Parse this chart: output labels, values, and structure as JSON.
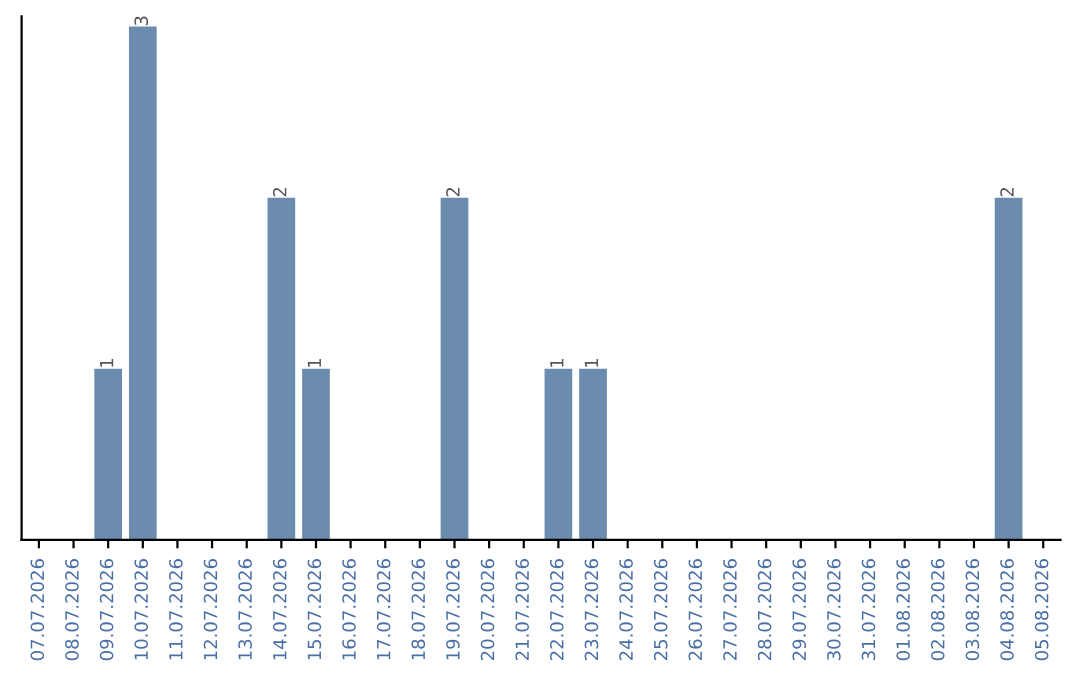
{
  "chart_data": {
    "type": "bar",
    "categories": [
      "07.07.2026",
      "08.07.2026",
      "09.07.2026",
      "10.07.2026",
      "11.07.2026",
      "12.07.2026",
      "13.07.2026",
      "14.07.2026",
      "15.07.2026",
      "16.07.2026",
      "17.07.2026",
      "18.07.2026",
      "19.07.2026",
      "20.07.2026",
      "21.07.2026",
      "22.07.2026",
      "23.07.2026",
      "24.07.2026",
      "25.07.2026",
      "26.07.2026",
      "27.07.2026",
      "28.07.2026",
      "29.07.2026",
      "30.07.2026",
      "31.07.2026",
      "01.08.2026",
      "02.08.2026",
      "03.08.2026",
      "04.08.2026",
      "05.08.2026"
    ],
    "values": [
      0,
      0,
      1,
      3,
      0,
      0,
      0,
      2,
      1,
      0,
      0,
      0,
      2,
      0,
      0,
      1,
      1,
      0,
      0,
      0,
      0,
      0,
      0,
      0,
      0,
      0,
      0,
      0,
      2,
      0
    ],
    "value_labels": [
      null,
      null,
      "1",
      "3",
      null,
      null,
      null,
      "2",
      "1",
      null,
      null,
      null,
      "2",
      null,
      null,
      "1",
      "1",
      null,
      null,
      null,
      null,
      null,
      null,
      null,
      null,
      null,
      null,
      null,
      "2",
      null
    ],
    "color": "#6b8cae",
    "tick_labels": "x"
  }
}
